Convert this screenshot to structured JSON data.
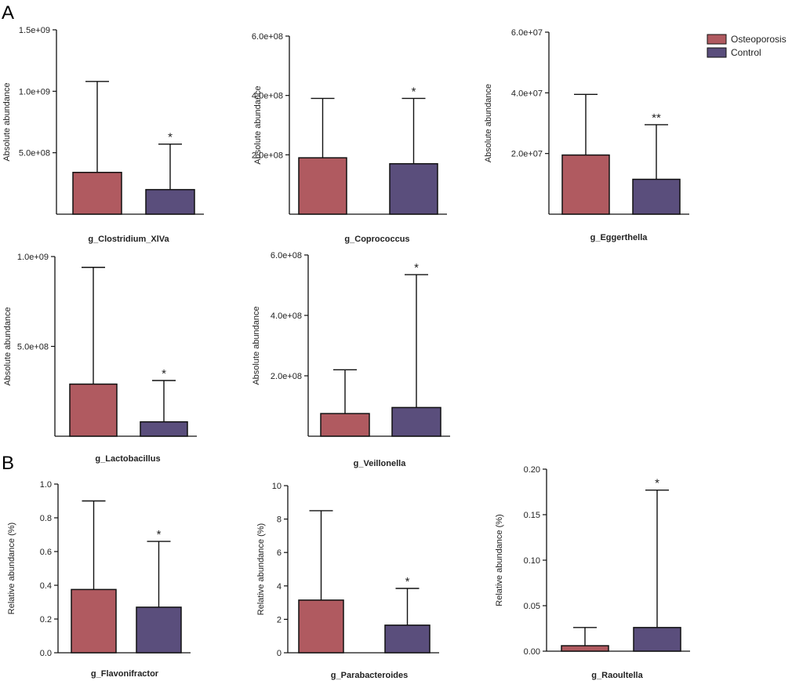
{
  "figure": {
    "panel_labels": [
      "A",
      "B"
    ],
    "legend": [
      {
        "label": "Osteoporosis",
        "color": "#b05a60"
      },
      {
        "label": "Control",
        "color": "#5a4e7c"
      }
    ]
  },
  "chart_data": [
    {
      "type": "bar",
      "panel": "A",
      "title": "",
      "xlabel": "g_Clostridium_XlVa",
      "ylabel": "Absolute abundance",
      "categories": [
        "Osteoporosis",
        "Control"
      ],
      "values": [
        340000000.0,
        200000000.0
      ],
      "error_upper": [
        1080000000.0,
        570000000.0
      ],
      "significance": [
        "",
        "*"
      ],
      "ylim": [
        0,
        1500000000.0
      ],
      "ticks": [
        500000000.0,
        1000000000.0,
        1500000000.0
      ],
      "tick_labels": [
        "5.0e+08",
        "1.0e+09",
        "1.5e+09"
      ]
    },
    {
      "type": "bar",
      "panel": "A",
      "title": "",
      "xlabel": "g_Coprococcus",
      "ylabel": "Absolute abundance",
      "categories": [
        "Osteoporosis",
        "Control"
      ],
      "values": [
        190000000.0,
        170000000.0
      ],
      "error_upper": [
        390000000.0,
        390000000.0
      ],
      "significance": [
        "",
        "*"
      ],
      "ylim": [
        0,
        600000000.0
      ],
      "ticks": [
        200000000.0,
        400000000.0,
        600000000.0
      ],
      "tick_labels": [
        "2.0e+08",
        "4.0e+08",
        "6.0e+08"
      ]
    },
    {
      "type": "bar",
      "panel": "A",
      "title": "",
      "xlabel": "g_Eggerthella",
      "ylabel": "Absolute abundance",
      "categories": [
        "Osteoporosis",
        "Control"
      ],
      "values": [
        19500000.0,
        11500000.0
      ],
      "error_upper": [
        39500000.0,
        29500000.0
      ],
      "significance": [
        "",
        "**"
      ],
      "ylim": [
        0,
        60000000.0
      ],
      "ticks": [
        20000000.0,
        40000000.0,
        60000000.0
      ],
      "tick_labels": [
        "2.0e+07",
        "4.0e+07",
        "6.0e+07"
      ]
    },
    {
      "type": "bar",
      "panel": "A",
      "title": "",
      "xlabel": "g_Lactobacillus",
      "ylabel": "Absolute abundance",
      "categories": [
        "Osteoporosis",
        "Control"
      ],
      "values": [
        290000000.0,
        80000000.0
      ],
      "error_upper": [
        940000000.0,
        310000000.0
      ],
      "significance": [
        "",
        "*"
      ],
      "ylim": [
        0,
        1000000000.0
      ],
      "ticks": [
        500000000.0,
        1000000000.0
      ],
      "tick_labels": [
        "5.0e+08",
        "1.0e+09"
      ]
    },
    {
      "type": "bar",
      "panel": "A",
      "title": "",
      "xlabel": "g_Veillonella",
      "ylabel": "Absolute abundance",
      "categories": [
        "Osteoporosis",
        "Control"
      ],
      "values": [
        75000000.0,
        95000000.0
      ],
      "error_upper": [
        220000000.0,
        535000000.0
      ],
      "significance": [
        "",
        "*"
      ],
      "ylim": [
        0,
        600000000.0
      ],
      "ticks": [
        200000000.0,
        400000000.0,
        600000000.0
      ],
      "tick_labels": [
        "2.0e+08",
        "4.0e+08",
        "6.0e+08"
      ]
    },
    {
      "type": "bar",
      "panel": "B",
      "title": "",
      "xlabel": "g_Flavonifractor",
      "ylabel": "Relative abundance (%)",
      "categories": [
        "Osteoporosis",
        "Control"
      ],
      "values": [
        0.375,
        0.27
      ],
      "error_upper": [
        0.9,
        0.66
      ],
      "significance": [
        "",
        "*"
      ],
      "ylim": [
        0,
        1.0
      ],
      "ticks": [
        0,
        0.2,
        0.4,
        0.6,
        0.8,
        1.0
      ],
      "tick_labels": [
        "0.0",
        "0.2",
        "0.4",
        "0.6",
        "0.8",
        "1.0"
      ]
    },
    {
      "type": "bar",
      "panel": "B",
      "title": "",
      "xlabel": "g_Parabacteroides",
      "ylabel": "Relative abundance (%)",
      "categories": [
        "Osteoporosis",
        "Control"
      ],
      "values": [
        3.15,
        1.65
      ],
      "error_upper": [
        8.5,
        3.85
      ],
      "significance": [
        "",
        "*"
      ],
      "ylim": [
        0,
        10
      ],
      "ticks": [
        0,
        2,
        4,
        6,
        8,
        10
      ],
      "tick_labels": [
        "0",
        "2",
        "4",
        "6",
        "8",
        "10"
      ]
    },
    {
      "type": "bar",
      "panel": "B",
      "title": "",
      "xlabel": "g_Raoultella",
      "ylabel": "Relative abundance (%)",
      "categories": [
        "Osteoporosis",
        "Control"
      ],
      "values": [
        0.006,
        0.026
      ],
      "error_upper": [
        0.026,
        0.177
      ],
      "significance": [
        "",
        "*"
      ],
      "ylim": [
        0,
        0.2
      ],
      "ticks": [
        0,
        0.05,
        0.1,
        0.15,
        0.2
      ],
      "tick_labels": [
        "0.00",
        "0.05",
        "0.10",
        "0.15",
        "0.20"
      ]
    }
  ]
}
